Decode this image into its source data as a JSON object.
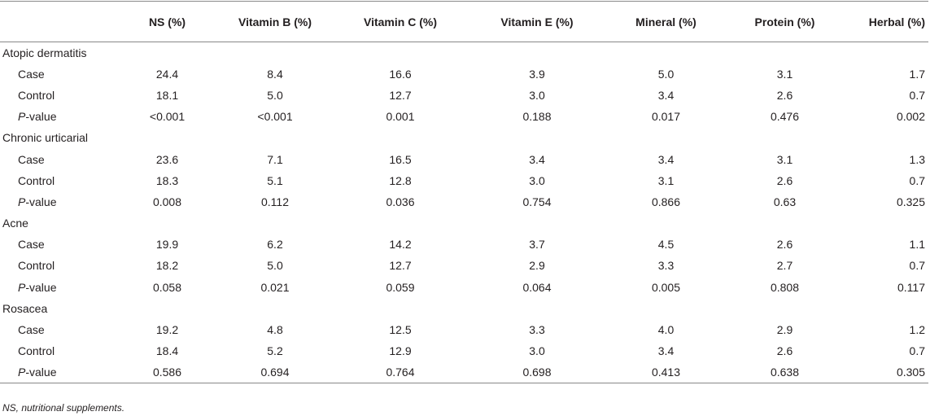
{
  "table": {
    "header": [
      "",
      "NS (%)",
      "Vitamin B (%)",
      "Vitamin C (%)",
      "Vitamin E (%)",
      "Mineral (%)",
      "Protein (%)",
      "Herbal (%)"
    ],
    "groups": [
      {
        "name": "Atopic dermatitis",
        "rows": [
          {
            "label": "Case",
            "values": [
              "24.4",
              "8.4",
              "16.6",
              "3.9",
              "5.0",
              "3.1",
              "1.7"
            ]
          },
          {
            "label": "Control",
            "values": [
              "18.1",
              "5.0",
              "12.7",
              "3.0",
              "3.4",
              "2.6",
              "0.7"
            ]
          },
          {
            "label_italic": "P",
            "label_rest": "-value",
            "values": [
              "<0.001",
              "<0.001",
              "0.001",
              "0.188",
              "0.017",
              "0.476",
              "0.002"
            ]
          }
        ]
      },
      {
        "name": "Chronic urticarial",
        "rows": [
          {
            "label": "Case",
            "values": [
              "23.6",
              "7.1",
              "16.5",
              "3.4",
              "3.4",
              "3.1",
              "1.3"
            ]
          },
          {
            "label": "Control",
            "values": [
              "18.3",
              "5.1",
              "12.8",
              "3.0",
              "3.1",
              "2.6",
              "0.7"
            ]
          },
          {
            "label_italic": "P",
            "label_rest": "-value",
            "values": [
              "0.008",
              "0.112",
              "0.036",
              "0.754",
              "0.866",
              "0.63",
              "0.325"
            ]
          }
        ]
      },
      {
        "name": "Acne",
        "rows": [
          {
            "label": "Case",
            "values": [
              "19.9",
              "6.2",
              "14.2",
              "3.7",
              "4.5",
              "2.6",
              "1.1"
            ]
          },
          {
            "label": "Control",
            "values": [
              "18.2",
              "5.0",
              "12.7",
              "2.9",
              "3.3",
              "2.7",
              "0.7"
            ]
          },
          {
            "label_italic": "P",
            "label_rest": "-value",
            "values": [
              "0.058",
              "0.021",
              "0.059",
              "0.064",
              "0.005",
              "0.808",
              "0.117"
            ]
          }
        ]
      },
      {
        "name": "Rosacea",
        "rows": [
          {
            "label": "Case",
            "values": [
              "19.2",
              "4.8",
              "12.5",
              "3.3",
              "4.0",
              "2.9",
              "1.2"
            ]
          },
          {
            "label": "Control",
            "values": [
              "18.4",
              "5.2",
              "12.9",
              "3.0",
              "3.4",
              "2.6",
              "0.7"
            ]
          },
          {
            "label_italic": "P",
            "label_rest": "-value",
            "values": [
              "0.586",
              "0.694",
              "0.764",
              "0.698",
              "0.413",
              "0.638",
              "0.305"
            ]
          }
        ]
      }
    ]
  },
  "footnote": "NS, nutritional supplements."
}
